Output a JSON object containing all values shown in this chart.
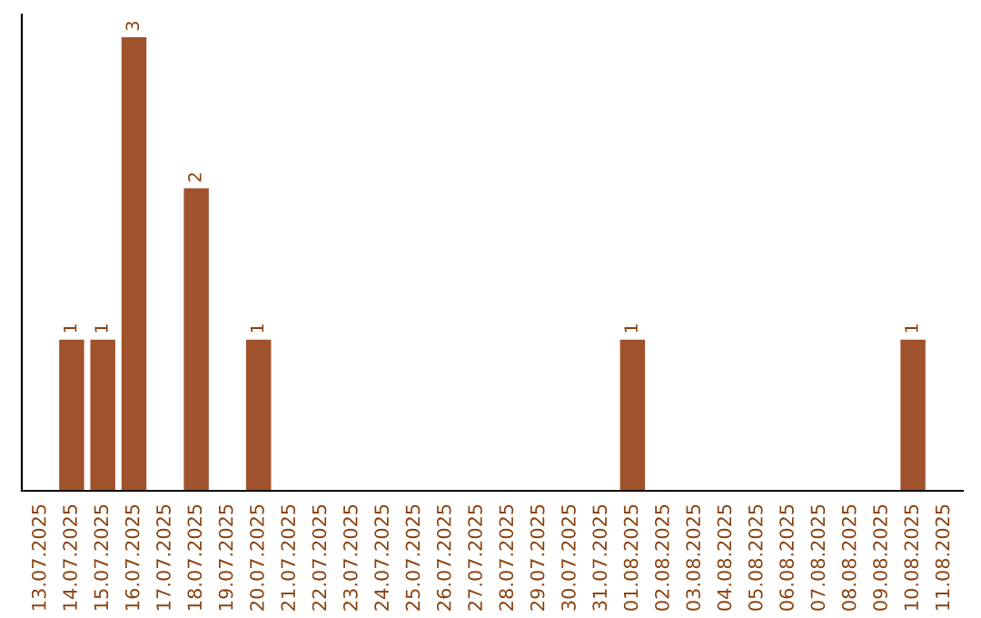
{
  "chart_data": {
    "type": "bar",
    "categories": [
      "13.07.2025",
      "14.07.2025",
      "15.07.2025",
      "16.07.2025",
      "17.07.2025",
      "18.07.2025",
      "19.07.2025",
      "20.07.2025",
      "21.07.2025",
      "22.07.2025",
      "23.07.2025",
      "24.07.2025",
      "25.07.2025",
      "26.07.2025",
      "27.07.2025",
      "28.07.2025",
      "29.07.2025",
      "30.07.2025",
      "31.07.2025",
      "01.08.2025",
      "02.08.2025",
      "03.08.2025",
      "04.08.2025",
      "05.08.2025",
      "06.08.2025",
      "07.08.2025",
      "08.08.2025",
      "09.08.2025",
      "10.08.2025",
      "11.08.2025"
    ],
    "values": [
      null,
      1,
      1,
      3,
      null,
      2,
      null,
      1,
      null,
      null,
      null,
      null,
      null,
      null,
      null,
      null,
      null,
      null,
      null,
      1,
      null,
      null,
      null,
      null,
      null,
      null,
      null,
      null,
      1,
      null
    ],
    "color": "#a0522d",
    "data_labels": true,
    "grid": false,
    "legend": false
  }
}
